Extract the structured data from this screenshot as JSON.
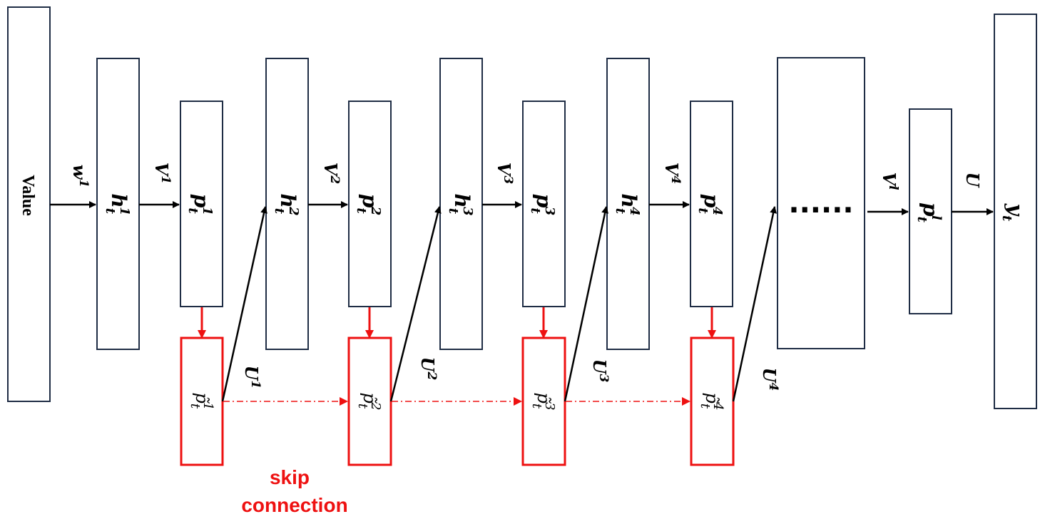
{
  "nodes": {
    "value": "Value",
    "ellipsis": "......",
    "h1": {
      "base": "h",
      "sub": "t",
      "sup": "1"
    },
    "p1": {
      "base": "p",
      "sub": "t",
      "sup": "1"
    },
    "h2": {
      "base": "h",
      "sub": "t",
      "sup": "2"
    },
    "p2": {
      "base": "p",
      "sub": "t",
      "sup": "2"
    },
    "h3": {
      "base": "h",
      "sub": "t",
      "sup": "3"
    },
    "p3": {
      "base": "p",
      "sub": "t",
      "sup": "3"
    },
    "h4": {
      "base": "h",
      "sub": "t",
      "sup": "4"
    },
    "p4": {
      "base": "p",
      "sub": "t",
      "sup": "4"
    },
    "pl": {
      "base": "p",
      "sub": "t",
      "sup": "l"
    },
    "y": {
      "base": "y",
      "sub": "t"
    },
    "pt1": {
      "base": "p̃",
      "sub": "t",
      "sup": "1"
    },
    "pt2": {
      "base": "p̃",
      "sub": "t",
      "sup": "2"
    },
    "pt3": {
      "base": "p̃",
      "sub": "t",
      "sup": "3"
    },
    "pt4": {
      "base": "p̃",
      "sub": "t",
      "sup": "4"
    }
  },
  "edges": {
    "w1": {
      "base": "w",
      "sup": "1"
    },
    "v1": {
      "base": "V",
      "sup": "1"
    },
    "v2": {
      "base": "V",
      "sup": "2"
    },
    "v3": {
      "base": "V",
      "sup": "3"
    },
    "v4": {
      "base": "V",
      "sup": "4"
    },
    "vl": {
      "base": "V",
      "sup": "l"
    },
    "u": {
      "base": "U"
    },
    "u1": {
      "base": "U",
      "sup": "1"
    },
    "u2": {
      "base": "U",
      "sup": "2"
    },
    "u3": {
      "base": "U",
      "sup": "3"
    },
    "u4": {
      "base": "U",
      "sup": "4"
    }
  },
  "skip_label": {
    "line1": "skip",
    "line2": "connection"
  },
  "colors": {
    "box_stroke": "#1f2d45",
    "skip_red": "#ee1111",
    "arrow": "#000000"
  }
}
